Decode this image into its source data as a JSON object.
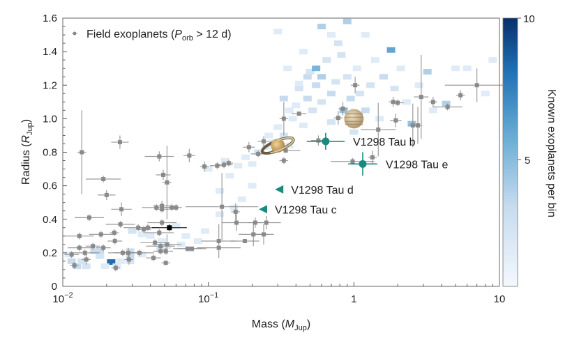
{
  "chart_data": {
    "type": "scatter",
    "xlabel": {
      "main": "Mass (",
      "sym": "M",
      "sub": "Jup",
      "end": ")"
    },
    "ylabel": {
      "main": "Radius (",
      "sym": "R",
      "sub": "Jup",
      "end": ")"
    },
    "x_scale": "log",
    "xlim": [
      0.01,
      10
    ],
    "ylim": [
      0,
      1.6
    ],
    "x_ticks": [
      {
        "v": 0.01,
        "base": "10",
        "exp": "−2"
      },
      {
        "v": 0.1,
        "base": "10",
        "exp": "−1"
      },
      {
        "v": 1,
        "base": "1",
        "exp": ""
      },
      {
        "v": 10,
        "base": "10",
        "exp": ""
      }
    ],
    "y_ticks": [
      "0",
      "0.2",
      "0.4",
      "0.6",
      "0.8",
      "1.0",
      "1.2",
      "1.4",
      "1.6"
    ],
    "grid": false,
    "legend": {
      "position": "top-left",
      "text_a": "Field exoplanets (",
      "sym": "P",
      "sub": "orb",
      "text_b": " > 12 d)"
    },
    "colorbar": {
      "label": "Known exoplanets per bin",
      "range": [
        0,
        10
      ],
      "ticks": [
        "5",
        "10"
      ],
      "colormap": "Blues",
      "low_color": "#f4f8fd",
      "high_color": "#08306b"
    },
    "heatmap_bins": [
      [
        0.0115,
        0.15,
        3
      ],
      [
        0.0125,
        0.12,
        3
      ],
      [
        0.0135,
        0.15,
        2
      ],
      [
        0.0145,
        0.12,
        2
      ],
      [
        0.011,
        0.19,
        1
      ],
      [
        0.0165,
        0.21,
        3
      ],
      [
        0.018,
        0.21,
        3
      ],
      [
        0.018,
        0.18,
        2
      ],
      [
        0.0215,
        0.145,
        10
      ],
      [
        0.0195,
        0.12,
        1
      ],
      [
        0.0235,
        0.12,
        1
      ],
      [
        0.029,
        0.18,
        3
      ],
      [
        0.029,
        0.21,
        3
      ],
      [
        0.029,
        0.15,
        2
      ],
      [
        0.025,
        0.15,
        1
      ],
      [
        0.035,
        0.19,
        1
      ],
      [
        0.04,
        0.3,
        1
      ],
      [
        0.047,
        0.22,
        2
      ],
      [
        0.052,
        0.24,
        1
      ],
      [
        0.048,
        0.27,
        1
      ],
      [
        0.035,
        0.31,
        1
      ],
      [
        0.03,
        0.33,
        2
      ],
      [
        0.065,
        0.25,
        1
      ],
      [
        0.07,
        0.3,
        1
      ],
      [
        0.075,
        0.22,
        1
      ],
      [
        0.085,
        0.27,
        1
      ],
      [
        0.095,
        0.33,
        1
      ],
      [
        0.06,
        0.36,
        1
      ],
      [
        0.12,
        0.43,
        1
      ],
      [
        0.15,
        0.47,
        1
      ],
      [
        0.17,
        0.52,
        1
      ],
      [
        0.12,
        0.57,
        1
      ],
      [
        0.2,
        0.6,
        1
      ],
      [
        0.14,
        0.66,
        1
      ],
      [
        0.1,
        0.7,
        1
      ],
      [
        0.13,
        0.75,
        1
      ],
      [
        0.16,
        0.72,
        1
      ],
      [
        0.18,
        0.77,
        1
      ],
      [
        0.2,
        0.73,
        1
      ],
      [
        0.22,
        0.8,
        2
      ],
      [
        0.25,
        0.83,
        1
      ],
      [
        0.28,
        0.86,
        1
      ],
      [
        0.26,
        0.9,
        1
      ],
      [
        0.3,
        0.95,
        1
      ],
      [
        0.33,
        0.9,
        2
      ],
      [
        0.36,
        0.84,
        1
      ],
      [
        0.38,
        1.0,
        1
      ],
      [
        0.4,
        1.08,
        1
      ],
      [
        0.42,
        1.18,
        2
      ],
      [
        0.42,
        1.21,
        1
      ],
      [
        0.45,
        0.96,
        1
      ],
      [
        0.48,
        1.12,
        3
      ],
      [
        0.48,
        1.25,
        3
      ],
      [
        0.5,
        1.28,
        2
      ],
      [
        0.52,
        1.05,
        2
      ],
      [
        0.55,
        1.2,
        3
      ],
      [
        0.55,
        1.3,
        6
      ],
      [
        0.6,
        1.25,
        4
      ],
      [
        0.6,
        1.1,
        2
      ],
      [
        0.65,
        1.35,
        2
      ],
      [
        0.7,
        0.98,
        2
      ],
      [
        0.7,
        1.15,
        3
      ],
      [
        0.75,
        1.22,
        2
      ],
      [
        0.78,
        1.45,
        2
      ],
      [
        0.82,
        1.38,
        2
      ],
      [
        0.85,
        1.05,
        5
      ],
      [
        0.9,
        1.25,
        2
      ],
      [
        0.95,
        1.12,
        3
      ],
      [
        1.0,
        0.92,
        2
      ],
      [
        1.05,
        1.3,
        1
      ],
      [
        1.1,
        1.15,
        2
      ],
      [
        1.2,
        1.05,
        3
      ],
      [
        1.3,
        1.2,
        2
      ],
      [
        1.4,
        1.35,
        1
      ],
      [
        1.5,
        1.0,
        1
      ],
      [
        1.6,
        1.25,
        3
      ],
      [
        1.8,
        1.41,
        7
      ],
      [
        1.9,
        1.18,
        2
      ],
      [
        2.1,
        1.3,
        1
      ],
      [
        2.3,
        1.1,
        1
      ],
      [
        2.5,
        0.97,
        5
      ],
      [
        2.8,
        1.2,
        1
      ],
      [
        3.2,
        1.28,
        4
      ],
      [
        3.5,
        1.05,
        1
      ],
      [
        4.3,
        1.09,
        4
      ],
      [
        5,
        1.3,
        1
      ],
      [
        6,
        1.3,
        1
      ],
      [
        8,
        1.15,
        1
      ],
      [
        9,
        1.35,
        1
      ],
      [
        0.6,
        1.55,
        4
      ],
      [
        0.3,
        1.52,
        1
      ],
      [
        0.9,
        1.58,
        4
      ],
      [
        0.45,
        1.4,
        1
      ],
      [
        0.7,
        1.5,
        1
      ],
      [
        1.2,
        1.5,
        1
      ],
      [
        0.35,
        1.3,
        1
      ],
      [
        0.33,
        1.12,
        3
      ],
      [
        0.36,
        1.05,
        1
      ]
    ],
    "field_exoplanets": [
      [
        0.0135,
        0.8,
        0.03,
        0.25
      ],
      [
        0.0247,
        0.86,
        0.06,
        0.04
      ],
      [
        0.019,
        0.64,
        0.12,
        0.02
      ],
      [
        0.02,
        0.545,
        0.06,
        0.03
      ],
      [
        0.0253,
        0.46,
        0.07,
        0.04
      ],
      [
        0.0152,
        0.41,
        0.1,
        0.02
      ],
      [
        0.0249,
        0.37,
        0.1,
        0.02
      ],
      [
        0.0226,
        0.32,
        0.03,
        0.02
      ],
      [
        0.0228,
        0.27,
        0.05,
        0.02
      ],
      [
        0.013,
        0.3,
        0.1,
        0.02
      ],
      [
        0.0183,
        0.31,
        0.08,
        0.02
      ],
      [
        0.013,
        0.23,
        0.08,
        0.02
      ],
      [
        0.0161,
        0.24,
        0.05,
        0.02
      ],
      [
        0.019,
        0.23,
        0.05,
        0.02
      ],
      [
        0.0115,
        0.19,
        0.05,
        0.02
      ],
      [
        0.0142,
        0.2,
        0.1,
        0.02
      ],
      [
        0.0145,
        0.16,
        0.03,
        0.03
      ],
      [
        0.012,
        0.125,
        0.03,
        0.02
      ],
      [
        0.0231,
        0.11,
        0.03,
        0.02
      ],
      [
        0.0258,
        0.2,
        0.1,
        0.02
      ],
      [
        0.0282,
        0.2,
        0.1,
        0.03
      ],
      [
        0.0285,
        0.16,
        0.03,
        0.03
      ],
      [
        0.0336,
        0.2,
        0.1,
        0.02
      ],
      [
        0.033,
        0.35,
        0.1,
        0.02
      ],
      [
        0.036,
        0.34,
        0.05,
        0.02
      ],
      [
        0.0384,
        0.35,
        0.08,
        0.02
      ],
      [
        0.044,
        0.47,
        0.1,
        0.02
      ],
      [
        0.048,
        0.48,
        0.06,
        0.03
      ],
      [
        0.048,
        0.46,
        0.05,
        0.02
      ],
      [
        0.056,
        0.47,
        0.05,
        0.02
      ],
      [
        0.06,
        0.47,
        0.04,
        0.02
      ],
      [
        0.049,
        0.665,
        0.05,
        0.03
      ],
      [
        0.052,
        0.62,
        0.03,
        0.22
      ],
      [
        0.048,
        0.38,
        0.1,
        0.02
      ],
      [
        0.046,
        0.32,
        0.1,
        0.02
      ],
      [
        0.043,
        0.26,
        0.1,
        0.02
      ],
      [
        0.047,
        0.24,
        0.1,
        0.02
      ],
      [
        0.052,
        0.25,
        0.1,
        0.06
      ],
      [
        0.047,
        0.21,
        0.05,
        0.02
      ],
      [
        0.051,
        0.21,
        0.05,
        0.02
      ],
      [
        0.042,
        0.17,
        0.05,
        0.02
      ],
      [
        0.051,
        0.14,
        0.03,
        0.01
      ],
      [
        0.072,
        0.225,
        0.1,
        0.01
      ],
      [
        0.077,
        0.225,
        0.1,
        0.01
      ],
      [
        0.094,
        0.715,
        0.03,
        0.03
      ],
      [
        0.128,
        0.725,
        0.06,
        0.02
      ],
      [
        0.138,
        0.735,
        0.03,
        0.02
      ],
      [
        0.124,
        0.475,
        0.25,
        0.2
      ],
      [
        0.154,
        0.445,
        0.03,
        0.05
      ],
      [
        0.156,
        0.38,
        0.1,
        0.05
      ],
      [
        0.118,
        0.27,
        0.12,
        0.1
      ],
      [
        0.118,
        0.23,
        0.15,
        0.01
      ],
      [
        0.178,
        0.27,
        0.1,
        0.01
      ],
      [
        0.21,
        0.38,
        0.05,
        0.03
      ],
      [
        0.25,
        0.38,
        0.1,
        0.04
      ],
      [
        0.204,
        0.31,
        0.1,
        0.07
      ],
      [
        0.24,
        0.31,
        0.07,
        0.06
      ],
      [
        0.046,
        0.775,
        0.1,
        0.03
      ],
      [
        0.074,
        0.78,
        0.04,
        0.04
      ],
      [
        0.115,
        0.72,
        0.05,
        0.02
      ],
      [
        0.19,
        0.83,
        0.04,
        0.03
      ],
      [
        0.22,
        0.79,
        0.05,
        0.02
      ],
      [
        0.24,
        0.865,
        0.04,
        0.03
      ],
      [
        0.33,
        0.75,
        0.03,
        0.02
      ],
      [
        0.33,
        1.0,
        0.03,
        0.1
      ],
      [
        1.02,
        1.2,
        0.03,
        0.05
      ],
      [
        0.84,
        1.06,
        0.03,
        0.04
      ],
      [
        0.78,
        1.005,
        0.03,
        0.04
      ],
      [
        0.42,
        1.03,
        0.05,
        0.01
      ],
      [
        0.57,
        0.87,
        0.05,
        0.03
      ],
      [
        0.34,
        0.81,
        0.1,
        0.01
      ],
      [
        0.98,
        0.745,
        0.15,
        0.02
      ],
      [
        1.34,
        0.77,
        0.03,
        0.04
      ],
      [
        1.47,
        0.935,
        0.12,
        0.16
      ],
      [
        1.86,
        1.1,
        0.03,
        0.03
      ],
      [
        2.0,
        1.095,
        0.04,
        0.02
      ],
      [
        1.94,
        0.99,
        0.04,
        0.04
      ],
      [
        2.9,
        1.13,
        0.05,
        0.25
      ],
      [
        2.75,
        0.96,
        0.03,
        0.11
      ],
      [
        2.54,
        0.96,
        0.03,
        0.13
      ],
      [
        3.5,
        1.1,
        0.03,
        0.03
      ],
      [
        4.4,
        1.07,
        0.1,
        0.02
      ],
      [
        5.4,
        1.14,
        0.03,
        0.03
      ],
      [
        7.0,
        1.2,
        0.22,
        0.1
      ]
    ],
    "highlighted_point": [
      0.054,
      0.35,
      0.12,
      0.02
    ],
    "v1298": {
      "color": "#1a8a80",
      "planets": [
        {
          "label": "V1298 Tau b",
          "mass": 0.64,
          "radius": 0.865,
          "dlogM": 0.13,
          "dR": 0.05,
          "marker": "circle"
        },
        {
          "label": "V1298 Tau e",
          "mass": 1.15,
          "radius": 0.73,
          "dlogM": 0.1,
          "dR": 0.07,
          "marker": "circle"
        },
        {
          "label": "V1298 Tau d",
          "mass": 0.31,
          "radius": 0.578,
          "marker": "upper-limit-triangle"
        },
        {
          "label": "V1298 Tau c",
          "mass": 0.24,
          "radius": 0.46,
          "marker": "upper-limit-triangle"
        }
      ]
    },
    "reference_icons": [
      {
        "name": "jupiter-icon",
        "mass": 1.0,
        "radius": 1.0
      },
      {
        "name": "saturn-icon",
        "mass": 0.3,
        "radius": 0.84
      }
    ]
  }
}
